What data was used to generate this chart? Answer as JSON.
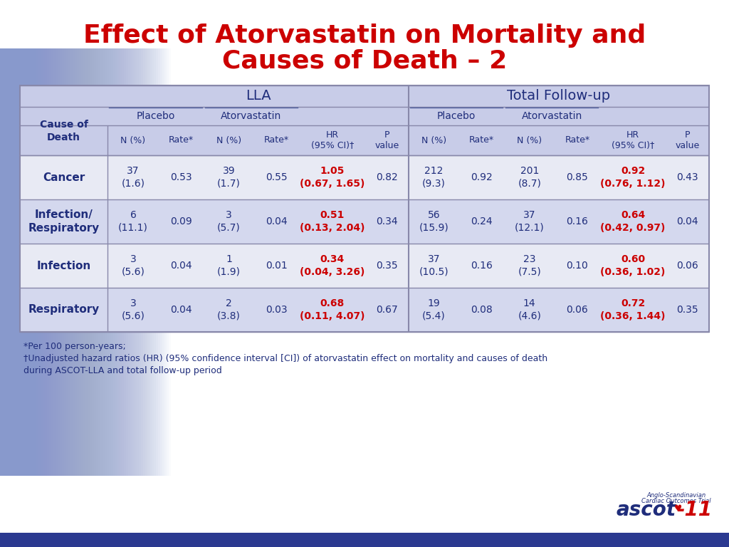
{
  "title_line1": "Effect of Atorvastatin on Mortality and",
  "title_line2": "Causes of Death – 2",
  "title_color": "#CC0000",
  "title_fontsize": 26,
  "bg_color": "#FFFFFF",
  "table_header_bg": "#C8CCE8",
  "table_row_bg_alt": "#D4D8EE",
  "table_row_bg_white": "#E8EAF4",
  "footer_bar_color": "#2B3990",
  "dark_blue": "#1F2D7B",
  "red_color": "#CC0000",
  "footnote1": "*Per 100 person-years;",
  "footnote2": "†Unadjusted hazard ratios (HR) (95% confidence interval [CI]) of atorvastatin effect on mortality and causes of death",
  "footnote3": "during ASCOT-LLA and total follow-up period",
  "rows": [
    {
      "label": "Cancer",
      "lla_placebo_n": "37\n(1.6)",
      "lla_placebo_rate": "0.53",
      "lla_atorva_n": "39\n(1.7)",
      "lla_atorva_rate": "0.55",
      "lla_hr": "1.05\n(0.67, 1.65)",
      "lla_p": "0.82",
      "tfu_placebo_n": "212\n(9.3)",
      "tfu_placebo_rate": "0.92",
      "tfu_atorva_n": "201\n(8.7)",
      "tfu_atorva_rate": "0.85",
      "tfu_hr": "0.92\n(0.76, 1.12)",
      "tfu_p": "0.43",
      "alt_bg": false
    },
    {
      "label": "Infection/\nRespiratory",
      "lla_placebo_n": "6\n(11.1)",
      "lla_placebo_rate": "0.09",
      "lla_atorva_n": "3\n(5.7)",
      "lla_atorva_rate": "0.04",
      "lla_hr": "0.51\n(0.13, 2.04)",
      "lla_p": "0.34",
      "tfu_placebo_n": "56\n(15.9)",
      "tfu_placebo_rate": "0.24",
      "tfu_atorva_n": "37\n(12.1)",
      "tfu_atorva_rate": "0.16",
      "tfu_hr": "0.64\n(0.42, 0.97)",
      "tfu_p": "0.04",
      "alt_bg": true
    },
    {
      "label": "Infection",
      "lla_placebo_n": "3\n(5.6)",
      "lla_placebo_rate": "0.04",
      "lla_atorva_n": "1\n(1.9)",
      "lla_atorva_rate": "0.01",
      "lla_hr": "0.34\n(0.04, 3.26)",
      "lla_p": "0.35",
      "tfu_placebo_n": "37\n(10.5)",
      "tfu_placebo_rate": "0.16",
      "tfu_atorva_n": "23\n(7.5)",
      "tfu_atorva_rate": "0.10",
      "tfu_hr": "0.60\n(0.36, 1.02)",
      "tfu_p": "0.06",
      "alt_bg": false
    },
    {
      "label": "Respiratory",
      "lla_placebo_n": "3\n(5.6)",
      "lla_placebo_rate": "0.04",
      "lla_atorva_n": "2\n(3.8)",
      "lla_atorva_rate": "0.03",
      "lla_hr": "0.68\n(0.11, 4.07)",
      "lla_p": "0.67",
      "tfu_placebo_n": "19\n(5.4)",
      "tfu_placebo_rate": "0.08",
      "tfu_atorva_n": "14\n(4.6)",
      "tfu_atorva_rate": "0.06",
      "tfu_hr": "0.72\n(0.36, 1.44)",
      "tfu_p": "0.35",
      "alt_bg": true
    }
  ]
}
